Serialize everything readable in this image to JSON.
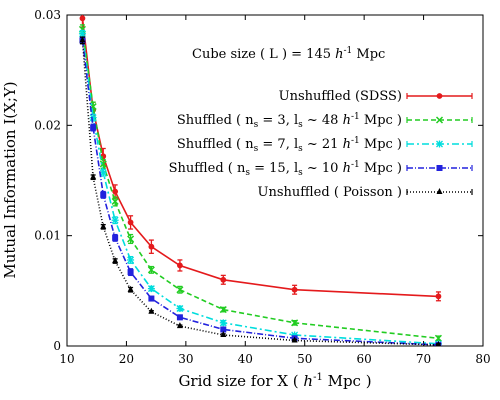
{
  "chart_data": {
    "type": "line",
    "annotation": {
      "prefix": "Cube size ( L ) = 145 ",
      "h": "h",
      "exp": "-1",
      "suffix": " Mpc"
    },
    "xlabel": {
      "prefix": "Grid size for X ( ",
      "h": "h",
      "exp": "-1",
      "suffix": " Mpc )"
    },
    "ylabel": "Mutual Information I(X;Y)",
    "xlim": [
      10,
      80
    ],
    "ylim": [
      0,
      0.03
    ],
    "x_ticks": [
      10,
      20,
      30,
      40,
      50,
      60,
      70,
      80
    ],
    "x_tick_labels": [
      "10",
      "20",
      "30",
      "40",
      "50",
      "60",
      "70",
      "80"
    ],
    "y_ticks": [
      0,
      0.01,
      0.02,
      0.03
    ],
    "y_tick_labels": [
      "0",
      "0.01",
      "0.02",
      "0.03"
    ],
    "legend_position": "right",
    "series": [
      {
        "key": "unshuffled-sdss",
        "legend": {
          "pre": "Unshuffled (SDSS)",
          "parts": []
        },
        "color": "#e41a1c",
        "dash": "solid",
        "marker": "circle",
        "x": [
          12.6,
          14.4,
          16.1,
          18.1,
          20.7,
          24.2,
          29.0,
          36.3,
          48.3,
          72.5
        ],
        "y": [
          0.0297,
          0.0214,
          0.0172,
          0.014,
          0.0112,
          0.009,
          0.0073,
          0.006,
          0.0051,
          0.0045
        ],
        "err": [
          0.0008,
          0.0007,
          0.0007,
          0.0006,
          0.0006,
          0.0006,
          0.0005,
          0.0004,
          0.0004,
          0.0004
        ]
      },
      {
        "key": "shuffled-ns3",
        "legend": {
          "pre": "Shuffled ( n",
          "parts": [
            {
              "sub": "s"
            },
            {
              "t": " =  3, l"
            },
            {
              "sub": "s"
            },
            {
              "t": " ~ 48 "
            },
            {
              "it": "h"
            },
            {
              "sup": "-1"
            },
            {
              "t": " Mpc )"
            }
          ]
        },
        "color": "#22cc22",
        "dash": "5,3",
        "marker": "x",
        "x": [
          12.6,
          14.4,
          16.1,
          18.1,
          20.7,
          24.2,
          29.0,
          36.3,
          48.3,
          72.5
        ],
        "y": [
          0.0287,
          0.0217,
          0.0165,
          0.0131,
          0.0097,
          0.0069,
          0.0051,
          0.0033,
          0.0021,
          0.0007
        ],
        "err": [
          0.0004,
          0.0004,
          0.0004,
          0.0004,
          0.0004,
          0.0003,
          0.0003,
          0.0002,
          0.0002,
          0.0002
        ]
      },
      {
        "key": "shuffled-ns7",
        "legend": {
          "pre": "Shuffled ( n",
          "parts": [
            {
              "sub": "s"
            },
            {
              "t": " =  7, l"
            },
            {
              "sub": "s"
            },
            {
              "t": " ~ 21 "
            },
            {
              "it": "h"
            },
            {
              "sup": "-1"
            },
            {
              "t": " Mpc )"
            }
          ]
        },
        "color": "#00dddd",
        "dash": "7,3,2,3",
        "marker": "asterisk",
        "x": [
          12.6,
          14.4,
          16.1,
          18.1,
          20.7,
          24.2,
          29.0,
          36.3,
          48.3,
          72.5
        ],
        "y": [
          0.0283,
          0.0207,
          0.0157,
          0.0114,
          0.0078,
          0.0052,
          0.0034,
          0.0021,
          0.001,
          0.0002
        ],
        "err": [
          0.0003,
          0.0003,
          0.0003,
          0.0003,
          0.0003,
          0.0002,
          0.0002,
          0.0002,
          0.0001,
          0.0001
        ]
      },
      {
        "key": "shuffled-ns15",
        "legend": {
          "pre": "Shuffled ( n",
          "parts": [
            {
              "sub": "s"
            },
            {
              "t": " = 15, l"
            },
            {
              "sub": "s"
            },
            {
              "t": " ~ 10 "
            },
            {
              "it": "h"
            },
            {
              "sup": "-1"
            },
            {
              "t": " Mpc )"
            }
          ]
        },
        "color": "#2222dd",
        "dash": "6,2,1,2",
        "marker": "square",
        "x": [
          12.6,
          14.4,
          16.1,
          18.1,
          20.7,
          24.2,
          29.0,
          36.3,
          48.3,
          72.5
        ],
        "y": [
          0.0277,
          0.0198,
          0.0137,
          0.0098,
          0.0067,
          0.0043,
          0.0026,
          0.0015,
          0.0007,
          0.0001
        ],
        "err": [
          0.0003,
          0.0003,
          0.0003,
          0.0003,
          0.0003,
          0.0002,
          0.0002,
          0.0002,
          0.0001,
          0.0001
        ]
      },
      {
        "key": "unshuffled-poisson",
        "legend": {
          "pre": "Unshuffled ( Poisson )",
          "parts": []
        },
        "color": "#000000",
        "dash": "1,2",
        "marker": "triangle",
        "x": [
          12.6,
          14.4,
          16.1,
          18.1,
          20.7,
          24.2,
          29.0,
          36.3,
          48.3,
          72.5
        ],
        "y": [
          0.0277,
          0.0153,
          0.0108,
          0.0077,
          0.0051,
          0.0031,
          0.0018,
          0.001,
          0.0005,
          0.0001
        ],
        "err": [
          0.0003,
          0.0002,
          0.0002,
          0.0002,
          0.0002,
          0.0001,
          0.0001,
          0.0001,
          0.0001,
          0.0001
        ]
      }
    ]
  }
}
